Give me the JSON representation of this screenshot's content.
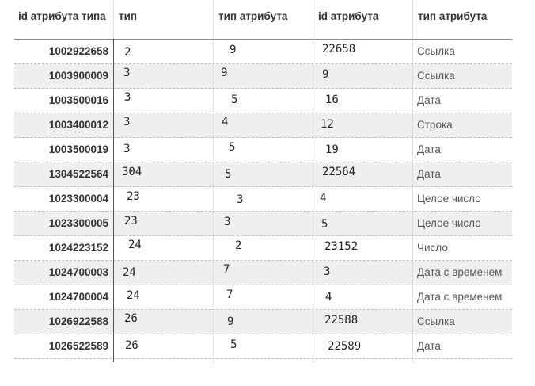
{
  "table": {
    "headers": [
      "id атрибута типа",
      "тип",
      "тип атрибута",
      "id атрибута",
      "тип атрибута"
    ],
    "rows": [
      {
        "id_type_attr": "1002922658",
        "type": "2",
        "attr_type": "9",
        "attr_id": "22658",
        "type_name": "Ссылка"
      },
      {
        "id_type_attr": "1003900009",
        "type": "3",
        "attr_type": "9",
        "attr_id": "9",
        "type_name": "Ссылка"
      },
      {
        "id_type_attr": "1003500016",
        "type": "3",
        "attr_type": "5",
        "attr_id": "16",
        "type_name": "Дата"
      },
      {
        "id_type_attr": "1003400012",
        "type": "3",
        "attr_type": "4",
        "attr_id": "12",
        "type_name": "Строка"
      },
      {
        "id_type_attr": "1003500019",
        "type": "3",
        "attr_type": "5",
        "attr_id": "19",
        "type_name": "Дата"
      },
      {
        "id_type_attr": "1304522564",
        "type": "304",
        "attr_type": "5",
        "attr_id": "22564",
        "type_name": "Дата"
      },
      {
        "id_type_attr": "1023300004",
        "type": "23",
        "attr_type": "3",
        "attr_id": "4",
        "type_name": "Целое число"
      },
      {
        "id_type_attr": "1023300005",
        "type": "23",
        "attr_type": "3",
        "attr_id": "5",
        "type_name": "Целое число"
      },
      {
        "id_type_attr": "1024223152",
        "type": "24",
        "attr_type": "2",
        "attr_id": "23152",
        "type_name": "Число"
      },
      {
        "id_type_attr": "1024700003",
        "type": "24",
        "attr_type": "7",
        "attr_id": "3",
        "type_name": "Дата с временем"
      },
      {
        "id_type_attr": "1024700004",
        "type": "24",
        "attr_type": "7",
        "attr_id": "4",
        "type_name": "Дата с временем"
      },
      {
        "id_type_attr": "1026922588",
        "type": "26",
        "attr_type": "9",
        "attr_id": "22588",
        "type_name": "Ссылка"
      },
      {
        "id_type_attr": "1026522589",
        "type": "26",
        "attr_type": "5",
        "attr_id": "22589",
        "type_name": "Дата"
      }
    ]
  },
  "colors": {
    "shaded_row": "#efefef",
    "main_divider": "#555555",
    "header_text": "#333333"
  }
}
